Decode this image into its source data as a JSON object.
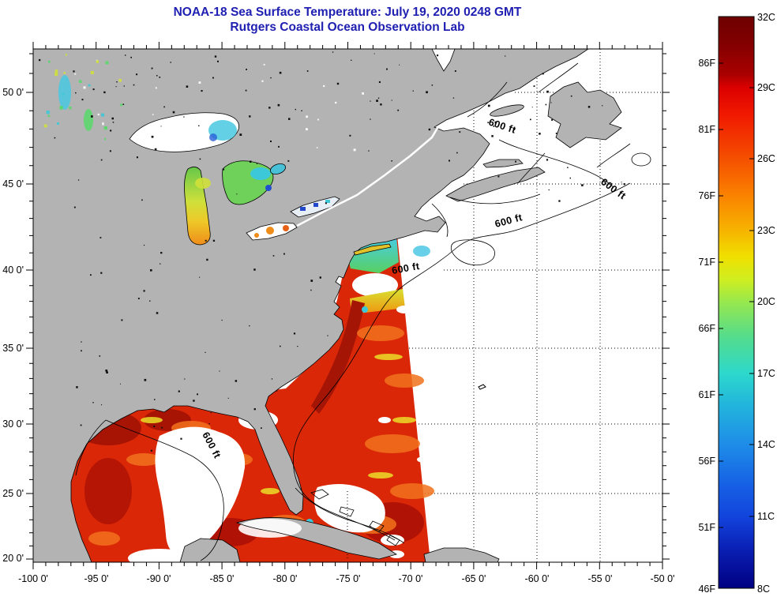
{
  "title": "NOAA-18 Sea Surface Temperature:  July 19, 2020 0248 GMT",
  "subtitle": "Rutgers Coastal Ocean Observation Lab",
  "axes": {
    "x_tick_labels": [
      "-100 0'",
      "-95 0'",
      "-90 0'",
      "-85 0'",
      "-80 0'",
      "-75 0'",
      "-70 0'",
      "-65 0'",
      "-60 0'",
      "-55 0'",
      "-50 0'"
    ],
    "y_tick_labels": [
      "50 0'",
      "45 0'",
      "40 0'",
      "35 0'",
      "30 0'",
      "25 0'",
      "20 0'"
    ]
  },
  "colorbar": {
    "celsius_labels": [
      "32C",
      "29C",
      "26C",
      "23C",
      "20C",
      "17C",
      "14C",
      "11C",
      "8C"
    ],
    "fahrenheit_labels": [
      "86F",
      "81F",
      "76F",
      "71F",
      "66F",
      "61F",
      "56F",
      "51F",
      "46F"
    ],
    "scale_colors_top_to_bottom": [
      "#6e0000",
      "#dc0000",
      "#f55000",
      "#f7b400",
      "#f0e000",
      "#96e84e",
      "#2cd8cc",
      "#1e8ce8",
      "#1244dc",
      "#000082"
    ]
  },
  "map": {
    "contour_labels": [
      "600 ft",
      "600 ft",
      "600 ft",
      "600 ft",
      "600 ft"
    ],
    "colors": {
      "land": "#b3b3b3",
      "no_data_ocean": "#ffffff",
      "warm_sst_red": "#d92708",
      "hot_sst_maroon": "#a51505",
      "title_text": "#2020b2"
    }
  },
  "chart_data": {
    "type": "heatmap",
    "title": "NOAA-18 Sea Surface Temperature: July 19, 2020 0248 GMT",
    "subtitle": "Rutgers Coastal Ocean Observation Lab",
    "x_axis": "longitude (deg min)",
    "y_axis": "latitude (deg min)",
    "x_range": [
      -100,
      -50
    ],
    "y_range": [
      20,
      52.8
    ],
    "colorbar_range_celsius": [
      8,
      32
    ],
    "colorbar_tick_step_celsius": 3,
    "colorbar_fahrenheit_ticks": [
      46,
      51,
      56,
      61,
      66,
      71,
      76,
      81,
      86
    ],
    "depth_contour_feet": 600
  }
}
